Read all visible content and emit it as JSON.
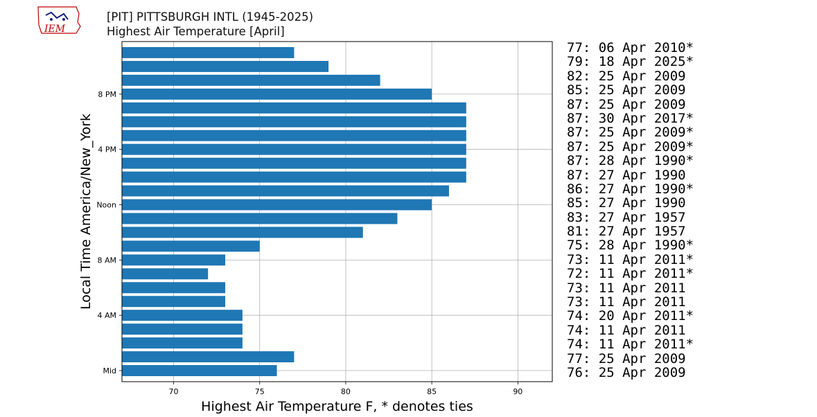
{
  "header": {
    "title": "[PIT] PITTSBURGH INTL (1945-2025)",
    "subtitle": "Highest Air Temperature [April]"
  },
  "logo": {
    "text": "IEM",
    "color": "#c00000"
  },
  "chart_data": {
    "type": "bar",
    "orientation": "horizontal",
    "title": "[PIT] PITTSBURGH INTL (1945-2025)",
    "subtitle": "Highest Air Temperature [April]",
    "xlabel": "Highest Air Temperature F, * denotes ties",
    "ylabel": "Local Time America/New_York",
    "xlim": [
      67,
      92
    ],
    "xticks": [
      70,
      75,
      80,
      85,
      90
    ],
    "yticks": [
      {
        "hour": 0,
        "label": "Mid"
      },
      {
        "hour": 4,
        "label": "4 AM"
      },
      {
        "hour": 8,
        "label": "8 AM"
      },
      {
        "hour": 12,
        "label": "Noon"
      },
      {
        "hour": 16,
        "label": "4 PM"
      },
      {
        "hour": 20,
        "label": "8 PM"
      }
    ],
    "grid": true,
    "bar_color": "#1f77b4",
    "hours": [
      0,
      1,
      2,
      3,
      4,
      5,
      6,
      7,
      8,
      9,
      10,
      11,
      12,
      13,
      14,
      15,
      16,
      17,
      18,
      19,
      20,
      21,
      22,
      23
    ],
    "values": [
      76,
      77,
      74,
      74,
      74,
      73,
      73,
      72,
      73,
      75,
      81,
      83,
      85,
      86,
      87,
      87,
      87,
      87,
      87,
      87,
      85,
      82,
      79,
      77
    ],
    "annotations": [
      "77: 06 Apr 2010*",
      "79: 18 Apr 2025*",
      "82: 25 Apr 2009",
      "85: 25 Apr 2009",
      "87: 25 Apr 2009",
      "87: 30 Apr 2017*",
      "87: 25 Apr 2009*",
      "87: 25 Apr 2009*",
      "87: 28 Apr 1990*",
      "87: 27 Apr 1990",
      "86: 27 Apr 1990*",
      "85: 27 Apr 1990",
      "83: 27 Apr 1957",
      "81: 27 Apr 1957",
      "75: 28 Apr 1990*",
      "73: 11 Apr 2011*",
      "72: 11 Apr 2011*",
      "73: 11 Apr 2011",
      "73: 11 Apr 2011",
      "74: 20 Apr 2011*",
      "74: 11 Apr 2011",
      "74: 11 Apr 2011*",
      "77: 25 Apr 2009",
      "76: 25 Apr 2009"
    ]
  }
}
